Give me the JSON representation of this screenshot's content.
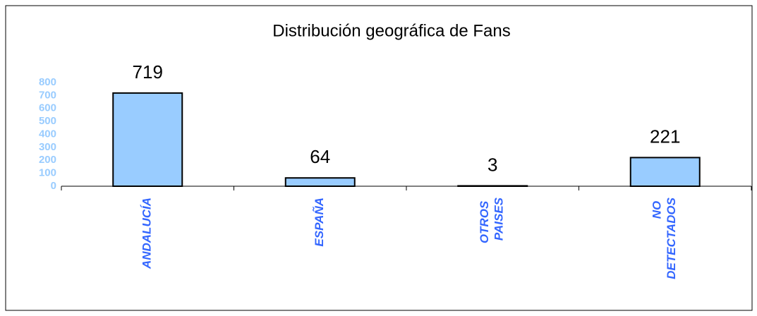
{
  "chart_data": {
    "type": "bar",
    "title": "Distribución geográfica de Fans",
    "categories": [
      "ANDALUCÍA",
      "ESPAÑA",
      "OTROS PAISES",
      "NO DETECTADOS"
    ],
    "values": [
      719,
      64,
      3,
      221
    ],
    "color": "#99ccff",
    "ylim": [
      0,
      800
    ],
    "yticks": [
      0,
      100,
      200,
      300,
      400,
      500,
      600,
      700,
      800
    ],
    "grid": false
  }
}
